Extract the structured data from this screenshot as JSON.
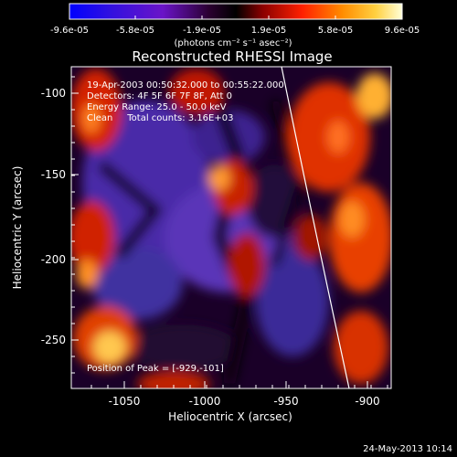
{
  "colorbar": {
    "ticks": [
      "-9.6e-05",
      "-5.8e-05",
      "-1.9e-05",
      "1.9e-05",
      "5.8e-05",
      "9.6e-05"
    ],
    "unit_label": "(photons cm⁻² s⁻¹ asec⁻²)"
  },
  "plot": {
    "title": "Reconstructed RHESSI Image",
    "xlabel": "Heliocentric X (arcsec)",
    "ylabel": "Heliocentric Y (arcsec)",
    "x_ticks": [
      "-1050",
      "-1000",
      "-950",
      "-900"
    ],
    "y_ticks": [
      "-100",
      "-150",
      "-200",
      "-250"
    ],
    "info_lines": [
      "19-Apr-2003 00:50:32.000 to 00:55:22.000",
      "Detectors: 4F 5F 6F 7F 8F, Att 0",
      "Energy Range: 25.0 - 50.0 keV",
      "Clean     Total counts: 3.16E+03"
    ],
    "peak_label": "Position of Peak = [-929,-101]"
  },
  "timestamp": "24-May-2013 10:14"
}
